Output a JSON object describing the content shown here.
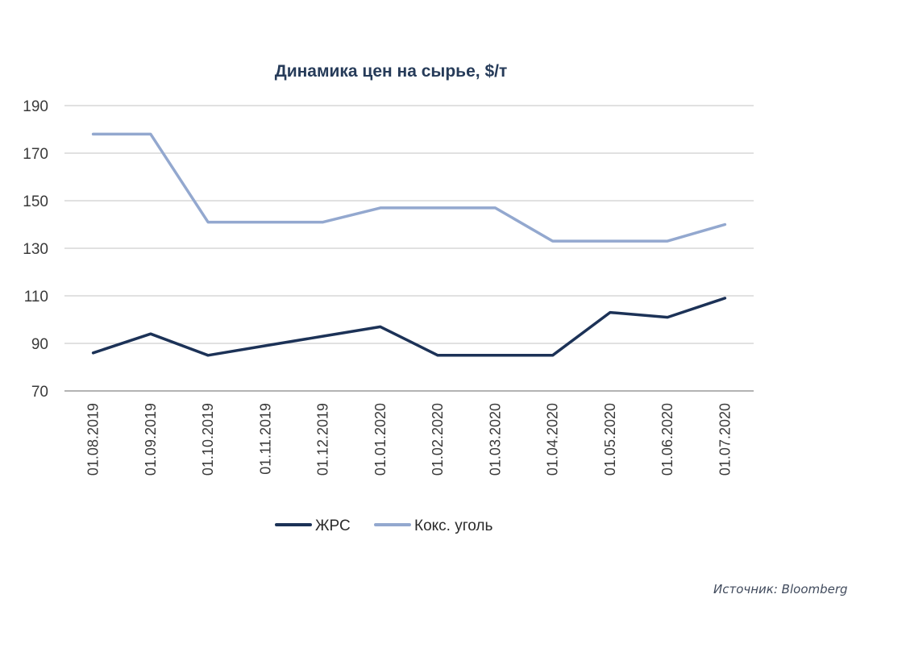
{
  "chart_data": {
    "type": "line",
    "title": "Динамика цен на сырье, $/т",
    "categories": [
      "01.08.2019",
      "01.09.2019",
      "01.10.2019",
      "01.11.2019",
      "01.12.2019",
      "01.01.2020",
      "01.02.2020",
      "01.03.2020",
      "01.04.2020",
      "01.05.2020",
      "01.06.2020",
      "01.07.2020"
    ],
    "series": [
      {
        "name": "ЖРС",
        "color": "#1c3257",
        "values": [
          86,
          94,
          85,
          89,
          93,
          97,
          85,
          85,
          85,
          103,
          101,
          109
        ]
      },
      {
        "name": "Кокс. уголь",
        "color": "#93a8cf",
        "values": [
          178,
          178,
          141,
          141,
          141,
          147,
          147,
          147,
          133,
          133,
          133,
          140
        ]
      }
    ],
    "yticks": [
      70,
      90,
      110,
      130,
      150,
      170,
      190
    ],
    "ylim": [
      70,
      190
    ],
    "grid": true,
    "legend_position": "bottom",
    "xlabel": "",
    "ylabel": ""
  },
  "source_text": "Источник:  Bloomberg"
}
